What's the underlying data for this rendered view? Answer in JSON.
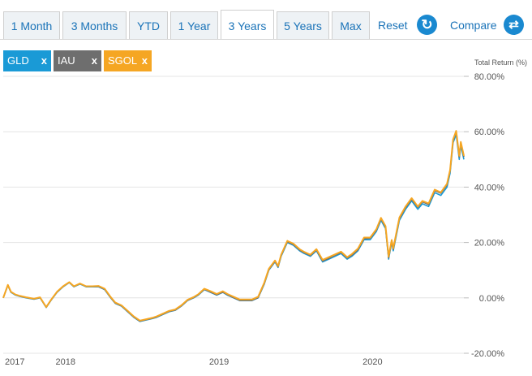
{
  "tabs": [
    {
      "label": "1 Month",
      "active": false
    },
    {
      "label": "3 Months",
      "active": false
    },
    {
      "label": "YTD",
      "active": false
    },
    {
      "label": "1 Year",
      "active": false
    },
    {
      "label": "3 Years",
      "active": true
    },
    {
      "label": "5 Years",
      "active": false
    },
    {
      "label": "Max",
      "active": false
    }
  ],
  "toolbar": {
    "reset_label": "Reset",
    "reset_icon": "refresh-icon",
    "compare_label": "Compare",
    "compare_icon": "swap-arrows-icon"
  },
  "legend_chips": [
    {
      "label": "GLD",
      "close": "x",
      "color": "#1a9ad6"
    },
    {
      "label": "IAU",
      "close": "x",
      "color": "#6e6e6e"
    },
    {
      "label": "SGOL",
      "close": "x",
      "color": "#f5a623"
    }
  ],
  "chart_data": {
    "type": "line",
    "ylabel": "Total Return (%)",
    "ylim": [
      -20,
      80
    ],
    "yticks": [
      80,
      60,
      40,
      20,
      0,
      -20
    ],
    "ytick_labels": [
      "80.00%",
      "60.00%",
      "40.00%",
      "20.00%",
      "0.00%",
      "-20.00%"
    ],
    "xticks": [
      2017.67,
      2018,
      2019,
      2020
    ],
    "xtick_labels": [
      "2017",
      "2018",
      "2019",
      "2020"
    ],
    "xlim": [
      2017.67,
      2020.67
    ],
    "grid": "horizontal",
    "series": [
      {
        "name": "GLD",
        "color": "#1a9ad6",
        "x": [
          2017.67,
          2017.7,
          2017.72,
          2017.75,
          2017.78,
          2017.82,
          2017.87,
          2017.91,
          2017.95,
          2017.98,
          2018.02,
          2018.06,
          2018.1,
          2018.13,
          2018.17,
          2018.21,
          2018.25,
          2018.29,
          2018.33,
          2018.37,
          2018.4,
          2018.44,
          2018.48,
          2018.52,
          2018.56,
          2018.6,
          2018.64,
          2018.67,
          2018.71,
          2018.75,
          2018.79,
          2018.83,
          2018.87,
          2018.91,
          2018.94,
          2018.98,
          2019.02,
          2019.06,
          2019.1,
          2019.13,
          2019.17,
          2019.21,
          2019.25,
          2019.29,
          2019.33,
          2019.37,
          2019.4,
          2019.44,
          2019.46,
          2019.48,
          2019.52,
          2019.56,
          2019.6,
          2019.63,
          2019.67,
          2019.71,
          2019.75,
          2019.79,
          2019.83,
          2019.87,
          2019.91,
          2019.94,
          2019.98,
          2020.02,
          2020.06,
          2020.1,
          2020.13,
          2020.16,
          2020.18,
          2020.2,
          2020.21,
          2020.25,
          2020.29,
          2020.33,
          2020.37,
          2020.4,
          2020.44,
          2020.48,
          2020.52,
          2020.56,
          2020.58,
          2020.6,
          2020.62,
          2020.64,
          2020.65,
          2020.67
        ],
        "y": [
          0,
          4.5,
          2,
          1,
          0.5,
          0,
          -0.5,
          0,
          -3.5,
          -1,
          2,
          4,
          5.5,
          4,
          5,
          4,
          4,
          4,
          3,
          0,
          -2,
          -3,
          -5,
          -7,
          -8.5,
          -8,
          -7.5,
          -7,
          -6,
          -5,
          -4.5,
          -3,
          -1,
          0,
          1,
          3,
          2,
          1,
          2,
          1,
          0,
          -1,
          -1,
          -1,
          0,
          5,
          10,
          13,
          11,
          15,
          20,
          19,
          17,
          16,
          15,
          17,
          13,
          14,
          15,
          16,
          14,
          15,
          17,
          21,
          21,
          24,
          28,
          25,
          14,
          20,
          17,
          28,
          32,
          35,
          32,
          34,
          33,
          38,
          37,
          40,
          45,
          56,
          59,
          50,
          55,
          50
        ]
      },
      {
        "name": "IAU",
        "color": "#6e6e6e",
        "x": [
          2017.67,
          2017.7,
          2017.72,
          2017.75,
          2017.78,
          2017.82,
          2017.87,
          2017.91,
          2017.95,
          2017.98,
          2018.02,
          2018.06,
          2018.1,
          2018.13,
          2018.17,
          2018.21,
          2018.25,
          2018.29,
          2018.33,
          2018.37,
          2018.4,
          2018.44,
          2018.48,
          2018.52,
          2018.56,
          2018.6,
          2018.64,
          2018.67,
          2018.71,
          2018.75,
          2018.79,
          2018.83,
          2018.87,
          2018.91,
          2018.94,
          2018.98,
          2019.02,
          2019.06,
          2019.1,
          2019.13,
          2019.17,
          2019.21,
          2019.25,
          2019.29,
          2019.33,
          2019.37,
          2019.4,
          2019.44,
          2019.46,
          2019.48,
          2019.52,
          2019.56,
          2019.6,
          2019.63,
          2019.67,
          2019.71,
          2019.75,
          2019.79,
          2019.83,
          2019.87,
          2019.91,
          2019.94,
          2019.98,
          2020.02,
          2020.06,
          2020.1,
          2020.13,
          2020.16,
          2020.18,
          2020.2,
          2020.21,
          2020.25,
          2020.29,
          2020.33,
          2020.37,
          2020.4,
          2020.44,
          2020.48,
          2020.52,
          2020.56,
          2020.58,
          2020.6,
          2020.62,
          2020.64,
          2020.65,
          2020.67
        ],
        "y": [
          0,
          4.6,
          2.1,
          1.1,
          0.6,
          0.1,
          -0.4,
          0.1,
          -3.4,
          -0.9,
          2.1,
          4.1,
          5.6,
          4.1,
          5.1,
          4.1,
          4.1,
          4.1,
          3.1,
          0.1,
          -1.9,
          -2.9,
          -4.9,
          -6.9,
          -8.4,
          -7.9,
          -7.4,
          -6.9,
          -5.9,
          -4.9,
          -4.4,
          -2.9,
          -0.9,
          0.1,
          1.1,
          3.1,
          2.1,
          1.1,
          2.1,
          1.1,
          0.1,
          -0.9,
          -0.9,
          -0.9,
          0.1,
          5.2,
          10.2,
          13.2,
          11.2,
          15.3,
          20.3,
          19.3,
          17.3,
          16.3,
          15.3,
          17.3,
          13.3,
          14.3,
          15.4,
          16.4,
          14.4,
          15.4,
          17.4,
          21.4,
          21.5,
          24.5,
          28.5,
          25.5,
          14.5,
          20.5,
          17.5,
          28.6,
          32.6,
          35.6,
          32.7,
          34.7,
          33.7,
          38.7,
          37.8,
          40.8,
          45.8,
          56.9,
          59.9,
          50.9,
          55.9,
          50.9
        ]
      },
      {
        "name": "SGOL",
        "color": "#f5a623",
        "x": [
          2017.67,
          2017.7,
          2017.72,
          2017.75,
          2017.78,
          2017.82,
          2017.87,
          2017.91,
          2017.95,
          2017.98,
          2018.02,
          2018.06,
          2018.1,
          2018.13,
          2018.17,
          2018.21,
          2018.25,
          2018.29,
          2018.33,
          2018.37,
          2018.4,
          2018.44,
          2018.48,
          2018.52,
          2018.56,
          2018.6,
          2018.64,
          2018.67,
          2018.71,
          2018.75,
          2018.79,
          2018.83,
          2018.87,
          2018.91,
          2018.94,
          2018.98,
          2019.02,
          2019.06,
          2019.1,
          2019.13,
          2019.17,
          2019.21,
          2019.25,
          2019.29,
          2019.33,
          2019.37,
          2019.4,
          2019.44,
          2019.46,
          2019.48,
          2019.52,
          2019.56,
          2019.6,
          2019.63,
          2019.67,
          2019.71,
          2019.75,
          2019.79,
          2019.83,
          2019.87,
          2019.91,
          2019.94,
          2019.98,
          2020.02,
          2020.06,
          2020.1,
          2020.13,
          2020.16,
          2020.18,
          2020.2,
          2020.21,
          2020.25,
          2020.29,
          2020.33,
          2020.37,
          2020.4,
          2020.44,
          2020.48,
          2020.52,
          2020.56,
          2020.58,
          2020.6,
          2020.62,
          2020.64,
          2020.65,
          2020.67
        ],
        "y": [
          0,
          4.7,
          2.2,
          1.2,
          0.7,
          0.2,
          -0.3,
          0.2,
          -3.3,
          -0.8,
          2.2,
          4.2,
          5.7,
          4.2,
          5.2,
          4.2,
          4.2,
          4.3,
          3.3,
          0.3,
          -1.7,
          -2.7,
          -4.7,
          -6.7,
          -8.2,
          -7.7,
          -7.2,
          -6.7,
          -5.7,
          -4.7,
          -4.2,
          -2.7,
          -0.7,
          0.3,
          1.3,
          3.3,
          2.4,
          1.4,
          2.4,
          1.4,
          0.4,
          -0.6,
          -0.6,
          -0.6,
          0.4,
          5.5,
          10.5,
          13.5,
          11.5,
          15.6,
          20.6,
          19.6,
          17.6,
          16.6,
          15.6,
          17.6,
          13.7,
          14.7,
          15.7,
          16.7,
          14.7,
          15.8,
          17.8,
          21.8,
          21.8,
          24.8,
          28.9,
          25.9,
          14.9,
          20.9,
          17.9,
          29,
          33,
          36,
          33,
          35,
          34.1,
          39.1,
          38.1,
          41.2,
          46.2,
          57.2,
          60.3,
          51.3,
          56.3,
          51.3
        ]
      }
    ]
  }
}
